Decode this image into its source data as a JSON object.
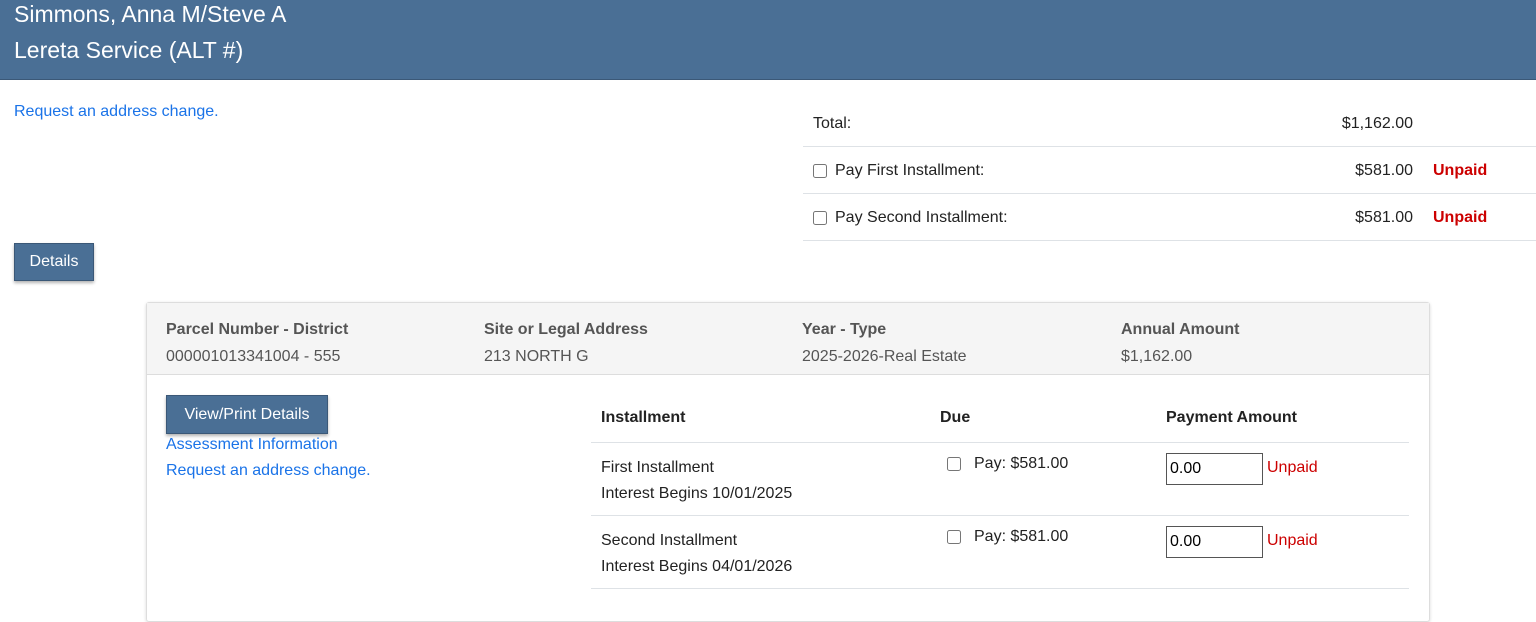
{
  "header": {
    "owner": "Simmons, Anna M/Steve A",
    "service": "Lereta Service (ALT #)"
  },
  "top_link": "Request an address change.",
  "summary": {
    "total_label": "Total:",
    "total_amount": "$1,162.00",
    "rows": [
      {
        "label": "Pay First Installment:",
        "amount": "$581.00",
        "status": "Unpaid",
        "checked": false
      },
      {
        "label": "Pay Second Installment:",
        "amount": "$581.00",
        "status": "Unpaid",
        "checked": false
      }
    ]
  },
  "details_button": "Details",
  "parcel": {
    "columns": [
      {
        "label": "Parcel Number - District",
        "value": "000001013341004 - 555"
      },
      {
        "label": "Site or Legal Address",
        "value": "213 NORTH G"
      },
      {
        "label": "Year - Type",
        "value": "2025-2026-Real Estate"
      },
      {
        "label": "Annual Amount",
        "value": "$1,162.00"
      }
    ],
    "view_print_button": "View/Print Details",
    "links": [
      "Assessment Information",
      "Request an address change."
    ],
    "table": {
      "headers": [
        "Installment",
        "Due",
        "Payment Amount"
      ],
      "rows": [
        {
          "name": "First Installment",
          "interest": "Interest Begins 10/01/2025",
          "due": "Pay: $581.00",
          "payment": "0.00",
          "status": "Unpaid"
        },
        {
          "name": "Second Installment",
          "interest": "Interest Begins 04/01/2026",
          "due": "Pay: $581.00",
          "payment": "0.00",
          "status": "Unpaid"
        }
      ]
    }
  },
  "colors": {
    "header_bg": "#4a6f95",
    "link": "#1a73e8",
    "unpaid": "#cc0000"
  }
}
